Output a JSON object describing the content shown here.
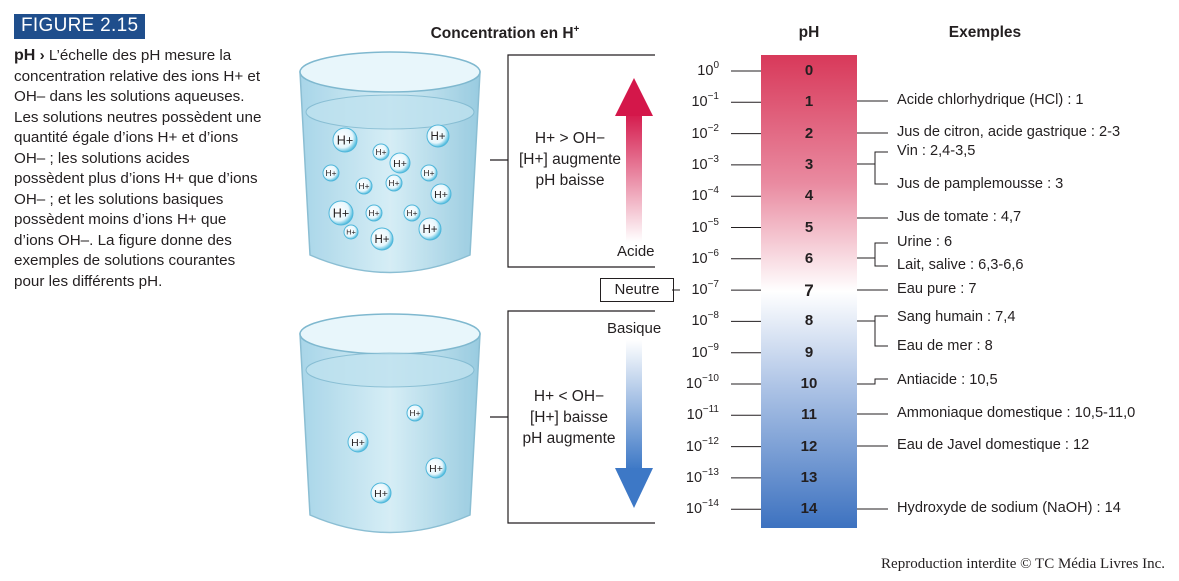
{
  "figure": {
    "label": "FIGURE 2.15",
    "title": "pH",
    "chevron": "›",
    "caption": "L’échelle des pH mesure la concentration relative des ions H+ et OH– dans les solutions aqueuses. Les solutions neutres possèdent une quantité égale d’ions H+ et d’ions OH– ; les solutions acides possèdent plus d’ions H+ que d’ions OH– ; et les solutions basiques possèdent moins d’ions H+ que d’ions OH–. La figure donne des exemples de solutions courantes pour les différents pH."
  },
  "headers": {
    "concentration": "Concentration en H",
    "concentration_sup": "+",
    "ph": "pH",
    "examples": "Exemples"
  },
  "scale": {
    "ph_values": [
      "0",
      "1",
      "2",
      "3",
      "4",
      "5",
      "6",
      "7",
      "8",
      "9",
      "10",
      "11",
      "12",
      "13",
      "14"
    ],
    "concentrations": [
      {
        "base": "10",
        "exp": "0"
      },
      {
        "base": "10",
        "exp": "−1"
      },
      {
        "base": "10",
        "exp": "−2"
      },
      {
        "base": "10",
        "exp": "−3"
      },
      {
        "base": "10",
        "exp": "−4"
      },
      {
        "base": "10",
        "exp": "−5"
      },
      {
        "base": "10",
        "exp": "−6"
      },
      {
        "base": "10",
        "exp": "−7"
      },
      {
        "base": "10",
        "exp": "−8"
      },
      {
        "base": "10",
        "exp": "−9"
      },
      {
        "base": "10",
        "exp": "−10"
      },
      {
        "base": "10",
        "exp": "−11"
      },
      {
        "base": "10",
        "exp": "−12"
      },
      {
        "base": "10",
        "exp": "−13"
      },
      {
        "base": "10",
        "exp": "−14"
      }
    ],
    "colors": {
      "acid": "#d8395a",
      "neutral": "#ffffff",
      "base": "#3d72c0"
    }
  },
  "examples": [
    "Acide chlorhydrique (HCl) : 1",
    "Jus de citron, acide gastrique : 2-3",
    "Vin : 2,4-3,5",
    "Jus de pamplemousse : 3",
    "Jus de tomate : 4,7",
    "Urine : 6",
    "Lait, salive : 6,3-6,6",
    "Eau pure : 7",
    "Sang humain : 7,4",
    "Eau de mer : 8",
    "Antiacide : 10,5",
    "Ammoniaque domestique : 10,5-11,0",
    "Eau de Javel domestique : 12",
    "Hydroxyde de sodium (NaOH) : 14"
  ],
  "acid": {
    "line1": "H+ > OH−",
    "line2": "[H+] augmente",
    "line3": "pH baisse",
    "label": "Acide"
  },
  "neutral": {
    "label": "Neutre"
  },
  "base": {
    "line1": "H+ < OH−",
    "line2": "[H+] baisse",
    "line3": "pH augmente",
    "label": "Basique"
  },
  "ion_label": "H+",
  "credit": "Reproduction interdite © TC Média Livres Inc."
}
